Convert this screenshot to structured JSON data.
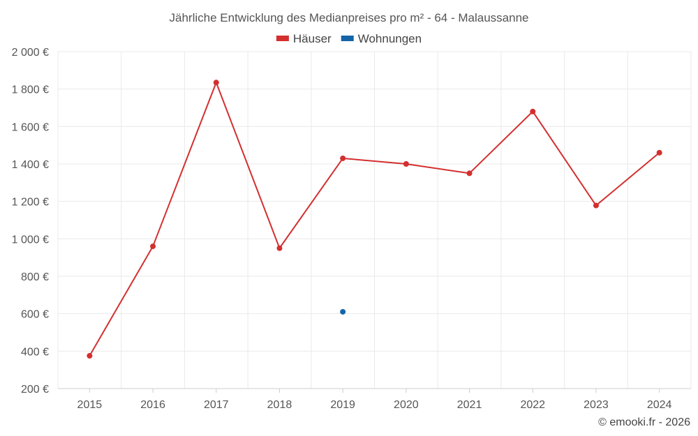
{
  "chart_data": {
    "type": "line",
    "title": "Jährliche Entwicklung des Medianpreises pro m² - 64 - Malaussanne",
    "categories": [
      "2015",
      "2016",
      "2017",
      "2018",
      "2019",
      "2020",
      "2021",
      "2022",
      "2023",
      "2024"
    ],
    "series": [
      {
        "name": "Häuser",
        "color": "#d32f2f",
        "values": [
          375,
          960,
          1835,
          950,
          1430,
          1400,
          1350,
          1680,
          1178,
          1460
        ]
      },
      {
        "name": "Wohnungen",
        "color": "#1565a8",
        "values": [
          null,
          null,
          null,
          null,
          610,
          null,
          null,
          null,
          null,
          null
        ]
      }
    ],
    "ylim": [
      200,
      2000
    ],
    "yticks": [
      {
        "value": 200,
        "label": "200 €"
      },
      {
        "value": 400,
        "label": "400 €"
      },
      {
        "value": 600,
        "label": "600 €"
      },
      {
        "value": 800,
        "label": "800 €"
      },
      {
        "value": 1000,
        "label": "1 000 €"
      },
      {
        "value": 1200,
        "label": "1 200 €"
      },
      {
        "value": 1400,
        "label": "1 400 €"
      },
      {
        "value": 1600,
        "label": "1 600 €"
      },
      {
        "value": 1800,
        "label": "1 800 €"
      },
      {
        "value": 2000,
        "label": "2 000 €"
      }
    ],
    "grid": true,
    "legend_position": "top-center"
  },
  "credit": "© emooki.fr - 2026"
}
